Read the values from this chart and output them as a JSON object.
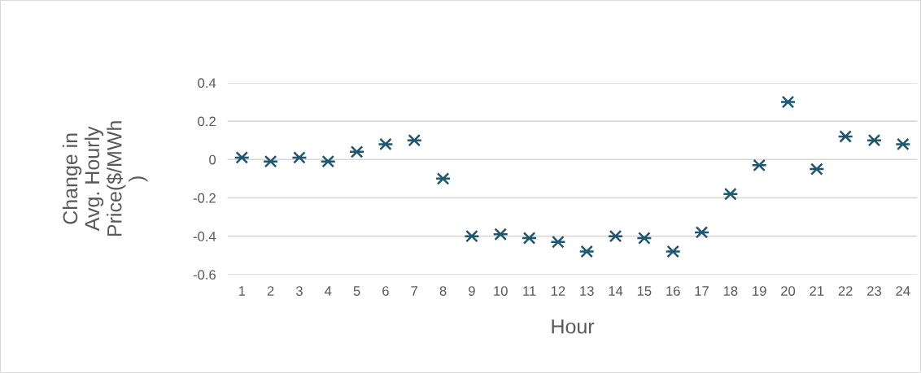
{
  "chart_data": {
    "type": "scatter",
    "xlabel": "Hour",
    "ylabel": "Change in\nAvg. Hourly\nPrice($/MWh\n)",
    "categories": [
      "1",
      "2",
      "3",
      "4",
      "5",
      "6",
      "7",
      "8",
      "9",
      "10",
      "11",
      "12",
      "13",
      "14",
      "15",
      "16",
      "17",
      "18",
      "19",
      "20",
      "21",
      "22",
      "23",
      "24"
    ],
    "series": [
      {
        "color": "#1f5670",
        "values": [
          0.01,
          -0.01,
          0.01,
          -0.01,
          0.04,
          0.08,
          0.1,
          -0.1,
          -0.4,
          -0.39,
          -0.41,
          -0.43,
          -0.48,
          -0.4,
          -0.41,
          -0.48,
          -0.38,
          -0.18,
          -0.03,
          0.3,
          -0.05,
          0.12,
          0.1,
          0.08
        ]
      }
    ],
    "ylim": [
      -0.6,
      0.4
    ],
    "yticks": [
      -0.6,
      -0.4,
      -0.2,
      0,
      0.2,
      0.4
    ],
    "grid": "y",
    "marker": "cross"
  }
}
